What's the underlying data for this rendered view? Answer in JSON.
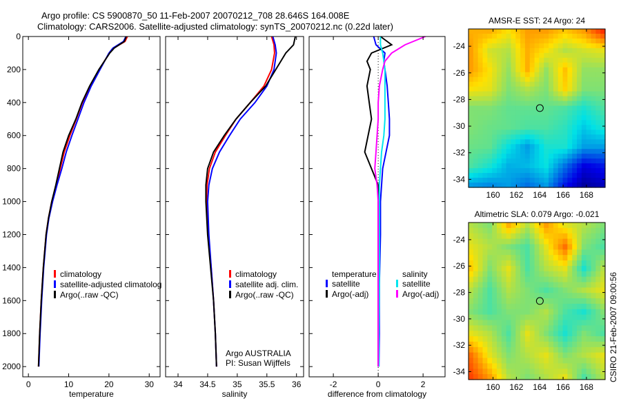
{
  "title_line1": "Argo profile: CS 5900870_50 11-Feb-2007 20070212_708 28.646S 164.008E",
  "title_line2": "Climatology: CARS2006. Satellite-adjusted climatology: synTS_20070212.nc (0.22d later)",
  "side_stamp": "CSIRO 21-Feb-2007 09:00:56",
  "colors": {
    "climatology": "#ff0000",
    "satellite": "#0000ff",
    "argo": "#000000",
    "sal_satellite": "#00e5ee",
    "sal_argo": "#ff00ff"
  },
  "chart_data": [
    {
      "type": "line",
      "id": "temperature",
      "xlabel": "temperature",
      "ylabel": "",
      "xlim": [
        -1.4,
        32.7
      ],
      "ylim": [
        0,
        2062
      ],
      "y_reversed": true,
      "xticks": [
        0,
        10,
        20,
        30
      ],
      "yticks": [
        0,
        200,
        400,
        600,
        800,
        1000,
        1200,
        1400,
        1600,
        1800,
        2000
      ],
      "legend": [
        "climatology",
        "satellite-adjusted climatolog",
        "Argo(..raw -QC)"
      ],
      "depth": [
        0,
        30,
        70,
        100,
        200,
        300,
        400,
        500,
        600,
        700,
        800,
        900,
        1000,
        1100,
        1200,
        1400,
        1600,
        1800,
        2000
      ],
      "series": [
        {
          "name": "climatology",
          "color_key": "climatology",
          "values": [
            24.6,
            24.0,
            21.2,
            20.1,
            17.6,
            15.3,
            13.4,
            11.9,
            10.3,
            8.9,
            7.9,
            6.9,
            5.8,
            5.0,
            4.4,
            3.7,
            3.2,
            2.8,
            2.5
          ]
        },
        {
          "name": "satellite-adjusted climatology",
          "color_key": "satellite",
          "values": [
            24.2,
            23.6,
            21.0,
            20.0,
            17.8,
            15.6,
            13.8,
            12.3,
            10.8,
            9.4,
            8.3,
            7.1,
            6.0,
            5.1,
            4.5,
            3.8,
            3.3,
            2.9,
            2.6
          ]
        },
        {
          "name": "Argo(..raw -QC)",
          "color_key": "argo",
          "values": [
            24.3,
            23.8,
            21.3,
            20.2,
            17.5,
            15.2,
            13.3,
            11.8,
            10.0,
            8.6,
            7.7,
            6.8,
            5.8,
            5.0,
            4.4,
            3.7,
            3.2,
            2.8,
            2.5
          ]
        }
      ]
    },
    {
      "type": "line",
      "id": "salinity",
      "xlabel": "salinity",
      "xlim": [
        33.79,
        36.12
      ],
      "ylim": [
        0,
        2062
      ],
      "y_reversed": true,
      "xticks": [
        34,
        34.5,
        35,
        35.5,
        36
      ],
      "legend": [
        "climatology",
        "satellite adj. clim.",
        "Argo(..raw -QC)"
      ],
      "annotation": [
        "Argo AUSTRALIA",
        "PI: Susan Wijffels"
      ],
      "depth": [
        0,
        50,
        100,
        200,
        300,
        400,
        500,
        600,
        700,
        800,
        900,
        1000,
        1200,
        1400,
        1600,
        1800,
        2000
      ],
      "series": [
        {
          "name": "climatology",
          "color_key": "climatology",
          "values": [
            35.58,
            35.62,
            35.63,
            35.58,
            35.45,
            35.22,
            34.98,
            34.8,
            34.63,
            34.53,
            34.49,
            34.48,
            34.51,
            34.56,
            34.6,
            34.63,
            34.65
          ]
        },
        {
          "name": "satellite adj. clim.",
          "color_key": "satellite",
          "values": [
            35.6,
            35.64,
            35.66,
            35.62,
            35.5,
            35.3,
            35.05,
            34.87,
            34.7,
            34.58,
            34.52,
            34.5,
            34.52,
            34.56,
            34.6,
            34.63,
            34.65
          ]
        },
        {
          "name": "Argo(..raw -QC)",
          "color_key": "argo",
          "values": [
            35.98,
            35.95,
            35.82,
            35.65,
            35.48,
            35.22,
            34.98,
            34.78,
            34.6,
            34.5,
            34.47,
            34.47,
            34.5,
            34.55,
            34.6,
            34.63,
            34.65
          ]
        }
      ]
    },
    {
      "type": "line",
      "id": "difference",
      "xlabel": "difference from climatology",
      "xlim": [
        -3.08,
        2.98
      ],
      "ylim": [
        0,
        2062
      ],
      "y_reversed": true,
      "xticks": [
        -2,
        0,
        2
      ],
      "legend_temperature": {
        "heading": "temperature",
        "items": [
          "satellite",
          "Argo(-adj)"
        ]
      },
      "legend_salinity": {
        "heading": "salinity",
        "items": [
          "satellite",
          "Argo(-adj)"
        ]
      },
      "depth": [
        0,
        50,
        100,
        150,
        200,
        300,
        400,
        500,
        600,
        700,
        800,
        900,
        1000,
        1200,
        1500,
        1800,
        2000
      ],
      "series": [
        {
          "name": "temperature satellite",
          "color_key": "satellite",
          "values": [
            -0.2,
            -0.1,
            0.3,
            0.25,
            0.3,
            0.4,
            0.45,
            0.5,
            0.5,
            0.35,
            0.2,
            0.15,
            0.1,
            0.1,
            0.05,
            0.05,
            0.03
          ]
        },
        {
          "name": "temperature Argo(-adj)",
          "color_key": "argo",
          "values": [
            0.1,
            0.6,
            -0.3,
            -0.5,
            -0.35,
            -0.5,
            -0.4,
            -0.3,
            -0.45,
            -0.6,
            -0.3,
            0.0,
            0.0,
            0.0,
            0.0,
            0.0,
            0.0
          ]
        },
        {
          "name": "salinity satellite",
          "color_key": "sal_satellite",
          "values": [
            0.1,
            0.1,
            0.2,
            0.25,
            0.3,
            0.3,
            0.3,
            0.3,
            0.25,
            0.15,
            0.1,
            0.05,
            0.05,
            0.05,
            0.05,
            0.03,
            0.03
          ]
        },
        {
          "name": "salinity Argo(-adj)",
          "color_key": "sal_argo",
          "values": [
            2.1,
            1.2,
            0.6,
            0.3,
            0.2,
            0.05,
            0.0,
            0.0,
            -0.05,
            -0.1,
            -0.15,
            -0.05,
            0.0,
            0.0,
            0.0,
            0.0,
            0.0
          ]
        }
      ]
    },
    {
      "type": "heatmap",
      "id": "sst_map",
      "title": "AMSR-E SST: 24 Argo: 24",
      "xlim": [
        157.9,
        169.6
      ],
      "ylim": [
        -34.6,
        -22.7
      ],
      "xticks": [
        160,
        162,
        164,
        166,
        168
      ],
      "yticks": [
        -24,
        -26,
        -28,
        -30,
        -32,
        -34
      ],
      "marker": {
        "lon": 164.008,
        "lat": -28.646
      },
      "field_normalized": [
        [
          0.68,
          0.68,
          0.62,
          0.7,
          0.7,
          0.65,
          0.7,
          0.82
        ],
        [
          0.7,
          0.58,
          0.55,
          0.68,
          0.62,
          0.55,
          0.58,
          0.6
        ],
        [
          0.7,
          0.62,
          0.52,
          0.68,
          0.52,
          0.66,
          0.52,
          0.52
        ],
        [
          0.62,
          0.6,
          0.5,
          0.55,
          0.5,
          0.64,
          0.5,
          0.5
        ],
        [
          0.5,
          0.5,
          0.47,
          0.47,
          0.47,
          0.45,
          0.4,
          0.45
        ],
        [
          0.5,
          0.48,
          0.47,
          0.45,
          0.45,
          0.42,
          0.35,
          0.4
        ],
        [
          0.48,
          0.47,
          0.38,
          0.3,
          0.4,
          0.4,
          0.3,
          0.3
        ],
        [
          0.45,
          0.4,
          0.32,
          0.33,
          0.38,
          0.25,
          0.12,
          0.15
        ],
        [
          0.3,
          0.28,
          0.3,
          0.25,
          0.3,
          0.15,
          0.05,
          0.08
        ]
      ]
    },
    {
      "type": "heatmap",
      "id": "sla_map",
      "title": "Altimetric SLA: 0.079 Argo: -0.021",
      "xlim": [
        157.9,
        169.6
      ],
      "ylim": [
        -34.6,
        -22.7
      ],
      "xticks": [
        160,
        162,
        164,
        166,
        168
      ],
      "yticks": [
        -24,
        -26,
        -28,
        -30,
        -32,
        -34
      ],
      "marker": {
        "lon": 164.008,
        "lat": -28.646
      },
      "field_normalized": [
        [
          0.55,
          0.5,
          0.68,
          0.55,
          0.7,
          0.6,
          0.55,
          0.5
        ],
        [
          0.6,
          0.55,
          0.5,
          0.45,
          0.6,
          0.75,
          0.5,
          0.45
        ],
        [
          0.65,
          0.5,
          0.6,
          0.45,
          0.55,
          0.6,
          0.4,
          0.55
        ],
        [
          0.55,
          0.45,
          0.55,
          0.5,
          0.45,
          0.5,
          0.55,
          0.6
        ],
        [
          0.5,
          0.45,
          0.5,
          0.5,
          0.55,
          0.45,
          0.4,
          0.5
        ],
        [
          0.6,
          0.55,
          0.45,
          0.6,
          0.5,
          0.4,
          0.5,
          0.45
        ],
        [
          0.75,
          0.6,
          0.5,
          0.55,
          0.6,
          0.5,
          0.55,
          0.6
        ],
        [
          0.8,
          0.7,
          0.55,
          0.5,
          0.55,
          0.6,
          0.45,
          0.55
        ]
      ]
    }
  ]
}
